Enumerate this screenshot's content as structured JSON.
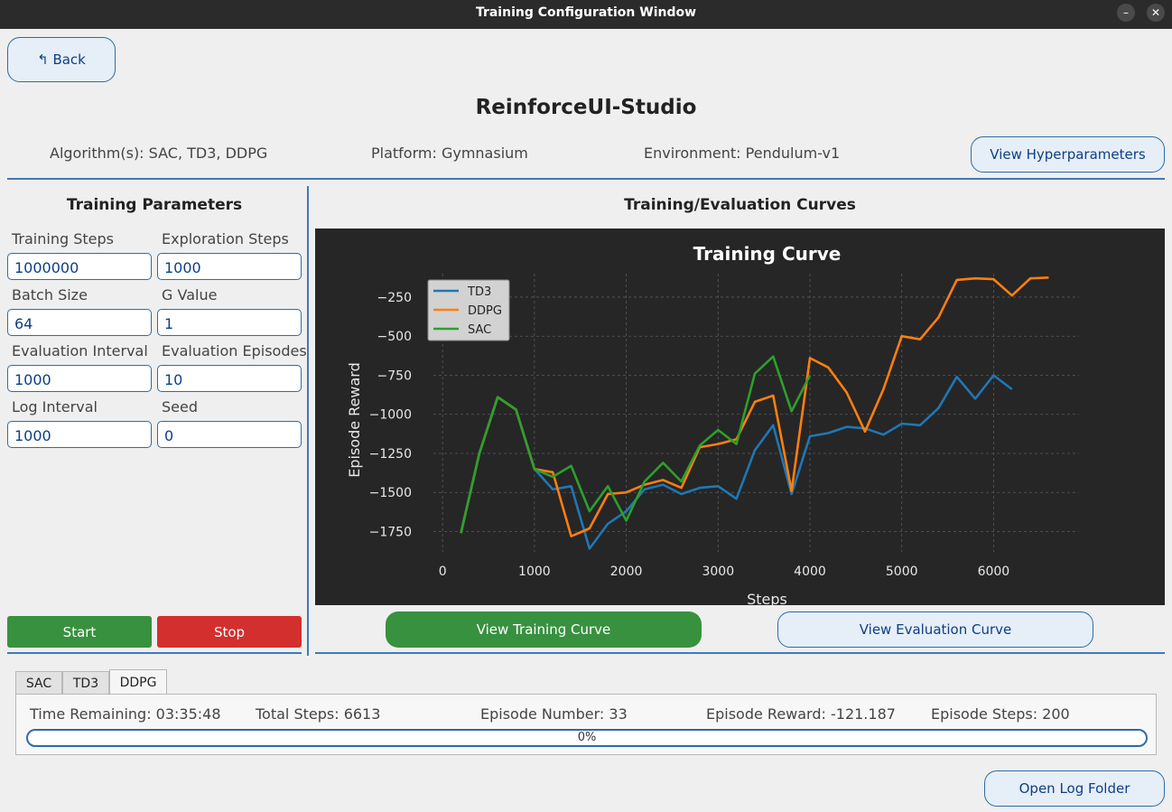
{
  "window": {
    "title": "Training Configuration Window",
    "minimize_glyph": "–",
    "close_glyph": "✕"
  },
  "header": {
    "back_label": "↰ Back",
    "app_title": "ReinforceUI-Studio",
    "algorithms": "Algorithm(s): SAC, TD3, DDPG",
    "platform": "Platform: Gymnasium",
    "environment": "Environment: Pendulum-v1",
    "view_hyperparameters_label": "View Hyperparameters"
  },
  "params": {
    "title": "Training Parameters",
    "fields": [
      {
        "label": "Training Steps",
        "value": "1000000"
      },
      {
        "label": "Exploration Steps",
        "value": "1000"
      },
      {
        "label": "Batch Size",
        "value": "64"
      },
      {
        "label": "G Value",
        "value": "1"
      },
      {
        "label": "Evaluation Interval",
        "value": "1000"
      },
      {
        "label": "Evaluation Episodes",
        "value": "10"
      },
      {
        "label": "Log Interval",
        "value": "1000"
      },
      {
        "label": "Seed",
        "value": "0"
      }
    ],
    "start_label": "Start",
    "stop_label": "Stop"
  },
  "curves": {
    "section_title": "Training/Evaluation Curves",
    "view_training_label": "View Training Curve",
    "view_evaluation_label": "View Evaluation Curve"
  },
  "chart_data": {
    "type": "line",
    "title": "Training Curve",
    "xlabel": "Steps",
    "ylabel": "Episode Reward",
    "xlim": [
      -100,
      6930
    ],
    "ylim": [
      -1880,
      -100
    ],
    "xticks": [
      0,
      1000,
      2000,
      3000,
      4000,
      5000,
      6000
    ],
    "yticks": [
      -250,
      -500,
      -750,
      -1000,
      -1250,
      -1500,
      -1750
    ],
    "grid": true,
    "legend_position": "top-left",
    "background": "#262626",
    "series": [
      {
        "name": "TD3",
        "color": "#1f77b4",
        "x": [
          200,
          400,
          600,
          800,
          1000,
          1200,
          1400,
          1600,
          1800,
          2000,
          2200,
          2400,
          2600,
          2800,
          3000,
          3200,
          3400,
          3600,
          3800,
          4000,
          4200,
          4400,
          4600,
          4800,
          5000,
          5200,
          5400,
          5600,
          5800,
          6000,
          6200
        ],
        "y": [
          -1760,
          -1250,
          -890,
          -970,
          -1350,
          -1480,
          -1460,
          -1860,
          -1700,
          -1620,
          -1480,
          -1450,
          -1510,
          -1470,
          -1460,
          -1540,
          -1230,
          -1070,
          -1510,
          -1140,
          -1120,
          -1080,
          -1090,
          -1130,
          -1060,
          -1070,
          -960,
          -760,
          -900,
          -750,
          -840
        ]
      },
      {
        "name": "DDPG",
        "color": "#ff7f0e",
        "x": [
          200,
          400,
          600,
          800,
          1000,
          1200,
          1400,
          1600,
          1800,
          2000,
          2200,
          2400,
          2600,
          2800,
          3000,
          3200,
          3400,
          3600,
          3800,
          4000,
          4200,
          4400,
          4600,
          4800,
          5000,
          5200,
          5400,
          5600,
          5800,
          6000,
          6200,
          6400,
          6600
        ],
        "y": [
          -1760,
          -1250,
          -890,
          -970,
          -1350,
          -1370,
          -1780,
          -1730,
          -1510,
          -1500,
          -1450,
          -1420,
          -1470,
          -1210,
          -1190,
          -1160,
          -920,
          -880,
          -1490,
          -640,
          -700,
          -860,
          -1110,
          -840,
          -500,
          -520,
          -380,
          -140,
          -130,
          -135,
          -240,
          -130,
          -125
        ]
      },
      {
        "name": "SAC",
        "color": "#2ca02c",
        "x": [
          200,
          400,
          600,
          800,
          1000,
          1200,
          1400,
          1600,
          1800,
          2000,
          2200,
          2400,
          2600,
          2800,
          3000,
          3200,
          3400,
          3600,
          3800,
          4000
        ],
        "y": [
          -1760,
          -1250,
          -890,
          -970,
          -1350,
          -1400,
          -1330,
          -1620,
          -1460,
          -1680,
          -1430,
          -1310,
          -1430,
          -1200,
          -1100,
          -1190,
          -740,
          -630,
          -980,
          -750
        ]
      }
    ]
  },
  "tabs": {
    "items": [
      "SAC",
      "TD3",
      "DDPG"
    ],
    "active": "DDPG"
  },
  "status": {
    "time_remaining": "Time Remaining: 03:35:48",
    "total_steps": "Total Steps: 6613",
    "episode_number": "Episode Number: 33",
    "episode_reward": "Episode Reward: -121.187",
    "episode_steps": "Episode Steps: 200",
    "progress_percent": 0,
    "progress_text": "0%"
  },
  "footer": {
    "open_log_folder_label": "Open Log Folder"
  }
}
